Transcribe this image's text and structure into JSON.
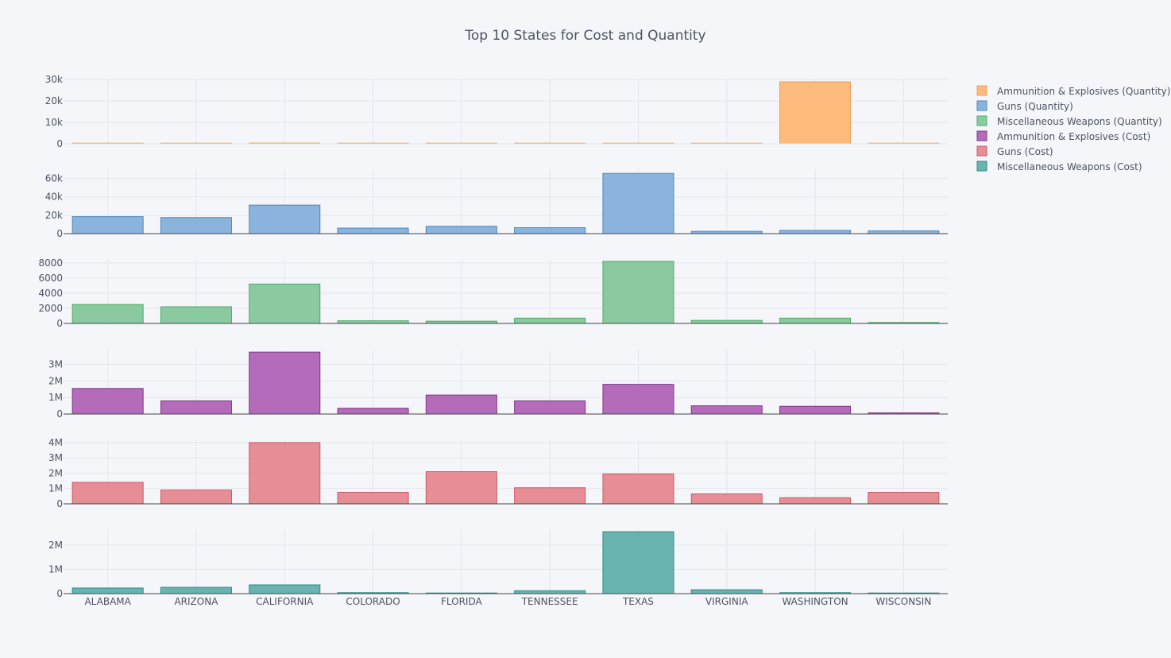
{
  "chart_data": {
    "type": "bar",
    "title": "Top 10 States for Cost and Quantity",
    "categories": [
      "ALABAMA",
      "ARIZONA",
      "CALIFORNIA",
      "COLORADO",
      "FLORIDA",
      "TENNESSEE",
      "TEXAS",
      "VIRGINIA",
      "WASHINGTON",
      "WISCONSIN"
    ],
    "grid": true,
    "legend_position": "top-right",
    "series": [
      {
        "name": "Ammunition & Explosives (Quantity)",
        "color": "#fdb46f",
        "edge": "#f0a050",
        "ylim": [
          0,
          30000
        ],
        "ticks": [
          0,
          10000,
          20000,
          30000
        ],
        "tick_labels": [
          "0",
          "10k",
          "20k",
          "30k"
        ],
        "values": [
          150,
          120,
          350,
          80,
          100,
          120,
          250,
          60,
          28900,
          100
        ]
      },
      {
        "name": "Guns (Quantity)",
        "color": "#7eadd7",
        "edge": "#4f86b8",
        "ylim": [
          0,
          70000
        ],
        "ticks": [
          0,
          20000,
          40000,
          60000
        ],
        "tick_labels": [
          "0",
          "20k",
          "40k",
          "60k"
        ],
        "values": [
          18500,
          17500,
          31000,
          6000,
          8000,
          6500,
          65500,
          2500,
          3500,
          3000
        ]
      },
      {
        "name": "Miscellaneous Weapons (Quantity)",
        "color": "#80c596",
        "edge": "#4fa96a",
        "ylim": [
          0,
          8500
        ],
        "ticks": [
          0,
          2000,
          4000,
          6000,
          8000
        ],
        "tick_labels": [
          "0",
          "2000",
          "4000",
          "6000",
          "8000"
        ],
        "values": [
          2500,
          2200,
          5200,
          350,
          300,
          700,
          8200,
          400,
          700,
          120
        ]
      },
      {
        "name": "Ammunition & Explosives (Cost)",
        "color": "#ad5cb2",
        "edge": "#7f3886",
        "ylim": [
          0,
          3900000
        ],
        "ticks": [
          0,
          1000000,
          2000000,
          3000000
        ],
        "tick_labels": [
          "0",
          "1M",
          "2M",
          "3M"
        ],
        "values": [
          1550000,
          800000,
          3750000,
          350000,
          1150000,
          800000,
          1800000,
          500000,
          470000,
          70000
        ]
      },
      {
        "name": "Guns (Cost)",
        "color": "#e4828b",
        "edge": "#c85a66",
        "ylim": [
          0,
          4200000
        ],
        "ticks": [
          0,
          1000000,
          2000000,
          3000000,
          4000000
        ],
        "tick_labels": [
          "0",
          "1M",
          "2M",
          "3M",
          "4M"
        ],
        "values": [
          1400000,
          900000,
          4000000,
          750000,
          2100000,
          1050000,
          1950000,
          650000,
          400000,
          750000
        ]
      },
      {
        "name": "Miscellaneous Weapons (Cost)",
        "color": "#5aaca8",
        "edge": "#2d8a86",
        "ylim": [
          0,
          2650000
        ],
        "ticks": [
          0,
          1000000,
          2000000
        ],
        "tick_labels": [
          "0",
          "1M",
          "2M"
        ],
        "values": [
          230000,
          260000,
          360000,
          40000,
          20000,
          120000,
          2550000,
          160000,
          40000,
          20000
        ]
      }
    ]
  }
}
